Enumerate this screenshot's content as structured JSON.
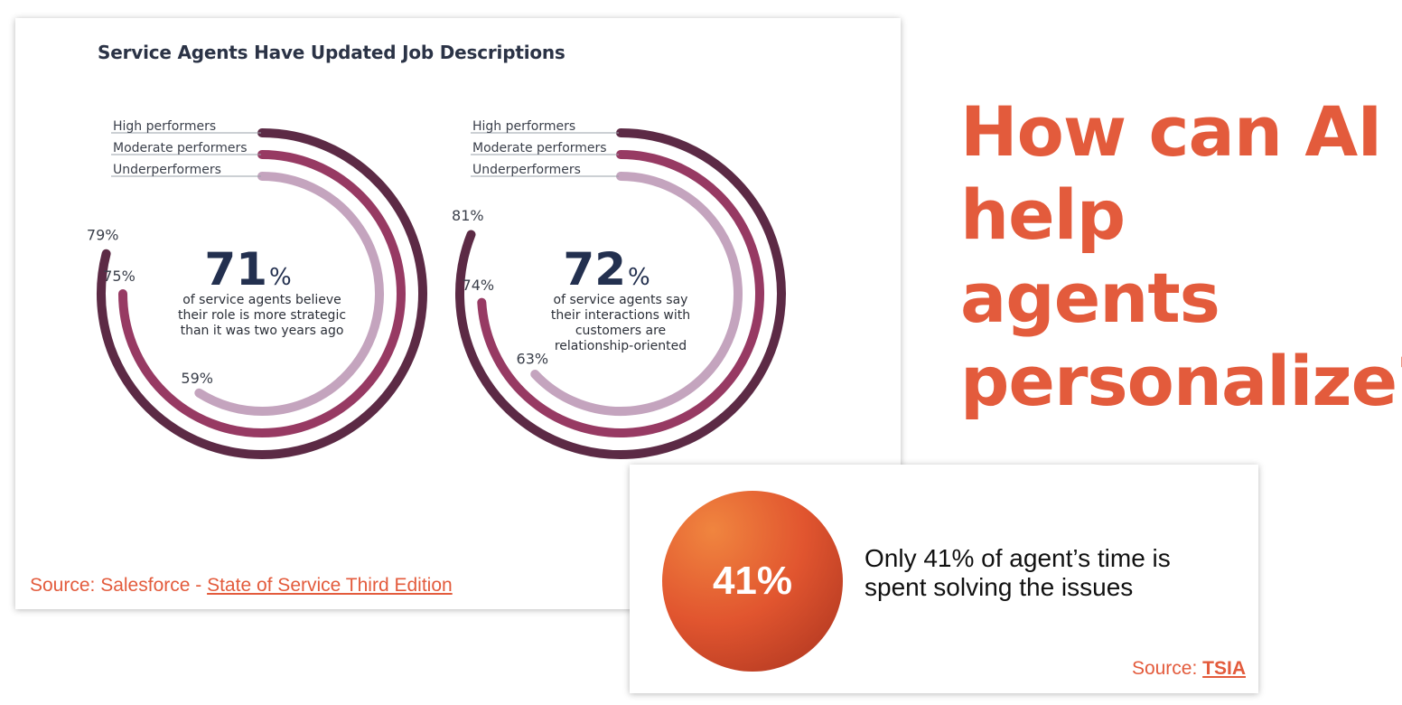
{
  "chart": {
    "title": "Service Agents Have Updated Job Descriptions",
    "source_prefix": "Source: Salesforce - ",
    "source_link": "State of Service Third Edition"
  },
  "chart_data": [
    {
      "type": "radial-bar",
      "title": "",
      "series": [
        {
          "name": "High performers",
          "value": 79,
          "label": "79%"
        },
        {
          "name": "Moderate performers",
          "value": 75,
          "label": "75%"
        },
        {
          "name": "Underperformers",
          "value": 59,
          "label": "59%"
        }
      ],
      "range": [
        0,
        100
      ],
      "center_value": "71",
      "center_unit": "%",
      "center_text": [
        "of service agents believe",
        "their role is more strategic",
        "than it was two years ago"
      ],
      "legend": "top-left leader lines"
    },
    {
      "type": "radial-bar",
      "title": "",
      "series": [
        {
          "name": "High performers",
          "value": 81,
          "label": "81%"
        },
        {
          "name": "Moderate performers",
          "value": 74,
          "label": "74%"
        },
        {
          "name": "Underperformers",
          "value": 63,
          "label": "63%"
        }
      ],
      "range": [
        0,
        100
      ],
      "center_value": "72",
      "center_unit": "%",
      "center_text": [
        "of service agents say",
        "their interactions with",
        "customers are",
        "relationship-oriented"
      ],
      "legend": "top-left leader lines"
    }
  ],
  "colors": {
    "ring_high": "#5c2a45",
    "ring_moderate": "#973a63",
    "ring_under": "#c4a4be",
    "accent": "#e35b3c",
    "navy": "#23304f"
  },
  "headline": {
    "line1": "How can AI",
    "line2": "help agents",
    "line3": "personalize?"
  },
  "stat": {
    "value": "41%",
    "text": "Only 41% of agent’s time is spent solving the issues",
    "source_prefix": "Source: ",
    "source_link": "TSIA"
  }
}
